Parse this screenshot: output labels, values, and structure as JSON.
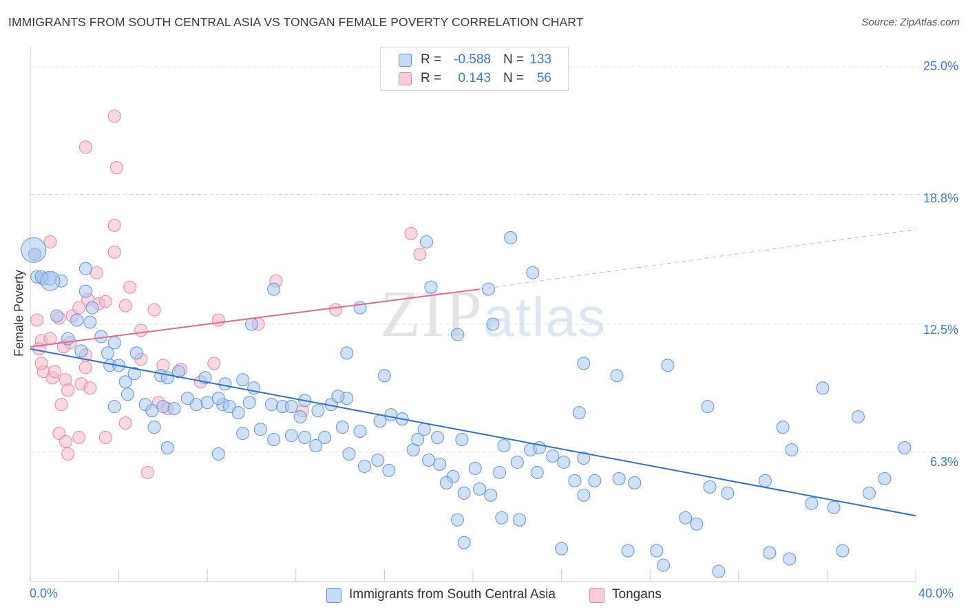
{
  "title": "IMMIGRANTS FROM SOUTH CENTRAL ASIA VS TONGAN FEMALE POVERTY CORRELATION CHART",
  "source": "Source: ZipAtlas.com",
  "watermark": {
    "zip": "ZIP",
    "atlas": "atlas"
  },
  "legend": {
    "rows": [
      {
        "r_label": "R =",
        "r_value": "-0.588",
        "n_label": "N =",
        "n_value": "133",
        "color": "#a9c8ef"
      },
      {
        "r_label": "R =",
        "r_value": "0.143",
        "n_label": "N =",
        "n_value": "56",
        "color": "#f5b8ca"
      }
    ]
  },
  "bottom_legend": [
    {
      "label": "Immigrants from South Central Asia",
      "color": "#a9c8ef"
    },
    {
      "label": "Tongans",
      "color": "#f5b8ca"
    }
  ],
  "colors": {
    "blue_fill": "#a9c8ef",
    "blue_stroke": "#5b93d8",
    "blue_line": "#2e6fd0",
    "pink_fill": "#f5b8ca",
    "pink_stroke": "#e585a2",
    "pink_line": "#e06b90",
    "tick_text": "#3a7bd5",
    "grid": "#dcdcdc"
  },
  "chart_data": {
    "type": "scatter",
    "title": "IMMIGRANTS FROM SOUTH CENTRAL ASIA VS TONGAN FEMALE POVERTY CORRELATION CHART",
    "xlabel": "",
    "ylabel": "Female Poverty",
    "xlim": [
      0,
      40
    ],
    "ylim": [
      0,
      27
    ],
    "x_tick_labels": [
      "0.0%",
      "40.0%"
    ],
    "y_ticks": [
      6.3,
      12.5,
      18.8,
      25.0
    ],
    "y_tick_labels": [
      "6.3%",
      "12.5%",
      "18.8%",
      "25.0%"
    ],
    "grid": true,
    "series": [
      {
        "name": "Immigrants from South Central Asia",
        "trend": {
          "x": [
            0,
            40
          ],
          "y": [
            11.3,
            3.2
          ],
          "dashed_from_x": null
        },
        "points": [
          [
            0.2,
            15.9
          ],
          [
            0.3,
            14.8
          ],
          [
            0.6,
            14.7
          ],
          [
            0.9,
            14.7
          ],
          [
            1.4,
            14.6
          ],
          [
            0.5,
            14.8
          ],
          [
            1.2,
            12.9
          ],
          [
            2.5,
            15.2
          ],
          [
            2.5,
            14.1
          ],
          [
            2.8,
            13.3
          ],
          [
            2.1,
            12.7
          ],
          [
            2.7,
            12.6
          ],
          [
            3.2,
            11.9
          ],
          [
            3.8,
            11.6
          ],
          [
            3.5,
            11.1
          ],
          [
            1.7,
            11.8
          ],
          [
            2.3,
            11.2
          ],
          [
            4.8,
            11.1
          ],
          [
            3.6,
            10.5
          ],
          [
            4.0,
            10.5
          ],
          [
            4.3,
            9.7
          ],
          [
            4.7,
            10.1
          ],
          [
            5.9,
            10.0
          ],
          [
            6.2,
            9.9
          ],
          [
            6.7,
            10.2
          ],
          [
            7.9,
            9.9
          ],
          [
            8.8,
            9.6
          ],
          [
            9.6,
            9.8
          ],
          [
            10.1,
            9.4
          ],
          [
            4.4,
            9.1
          ],
          [
            3.8,
            8.5
          ],
          [
            5.2,
            8.6
          ],
          [
            6.0,
            8.5
          ],
          [
            5.5,
            8.3
          ],
          [
            6.5,
            8.4
          ],
          [
            7.5,
            8.6
          ],
          [
            8.0,
            8.7
          ],
          [
            8.7,
            8.6
          ],
          [
            7.1,
            8.9
          ],
          [
            8.5,
            8.9
          ],
          [
            9.0,
            8.5
          ],
          [
            9.9,
            8.7
          ],
          [
            10.9,
            8.6
          ],
          [
            11.4,
            8.5
          ],
          [
            12.4,
            8.8
          ],
          [
            13.6,
            8.6
          ],
          [
            14.3,
            8.9
          ],
          [
            11.8,
            8.5
          ],
          [
            13.0,
            8.3
          ],
          [
            9.4,
            8.2
          ],
          [
            12.2,
            8.0
          ],
          [
            16.3,
            8.1
          ],
          [
            16.8,
            7.9
          ],
          [
            15.8,
            7.8
          ],
          [
            14.1,
            7.5
          ],
          [
            14.9,
            7.3
          ],
          [
            17.8,
            7.4
          ],
          [
            18.4,
            7.0
          ],
          [
            19.5,
            6.9
          ],
          [
            21.4,
            6.6
          ],
          [
            22.6,
            6.4
          ],
          [
            23.6,
            6.1
          ],
          [
            25.0,
            6.0
          ],
          [
            10.4,
            7.4
          ],
          [
            9.6,
            7.2
          ],
          [
            11.8,
            7.1
          ],
          [
            12.4,
            7.0
          ],
          [
            13.3,
            7.0
          ],
          [
            12.9,
            6.6
          ],
          [
            14.4,
            6.2
          ],
          [
            15.1,
            5.6
          ],
          [
            15.7,
            5.9
          ],
          [
            16.2,
            5.4
          ],
          [
            17.3,
            6.4
          ],
          [
            18.0,
            5.9
          ],
          [
            18.5,
            5.7
          ],
          [
            19.1,
            5.1
          ],
          [
            20.1,
            5.5
          ],
          [
            21.2,
            5.3
          ],
          [
            22.0,
            5.8
          ],
          [
            22.9,
            5.3
          ],
          [
            24.1,
            5.8
          ],
          [
            25.5,
            4.9
          ],
          [
            26.6,
            5.0
          ],
          [
            27.3,
            4.8
          ],
          [
            30.7,
            4.6
          ],
          [
            33.2,
            4.9
          ],
          [
            34.4,
            6.4
          ],
          [
            34.0,
            7.5
          ],
          [
            11.0,
            6.9
          ],
          [
            8.5,
            6.2
          ],
          [
            6.2,
            6.5
          ],
          [
            5.6,
            7.5
          ],
          [
            17.5,
            6.9
          ],
          [
            18.8,
            4.8
          ],
          [
            20.3,
            4.5
          ],
          [
            20.8,
            4.2
          ],
          [
            25.0,
            4.2
          ],
          [
            31.5,
            4.3
          ],
          [
            35.3,
            3.8
          ],
          [
            36.3,
            3.6
          ],
          [
            37.9,
            4.3
          ],
          [
            38.6,
            5.0
          ],
          [
            39.5,
            6.5
          ],
          [
            37.4,
            8.0
          ],
          [
            35.8,
            9.4
          ],
          [
            30.6,
            8.5
          ],
          [
            28.8,
            10.5
          ],
          [
            26.5,
            10.0
          ],
          [
            25.0,
            10.6
          ],
          [
            24.8,
            8.2
          ],
          [
            20.7,
            14.2
          ],
          [
            21.7,
            16.7
          ],
          [
            22.7,
            15.0
          ],
          [
            17.9,
            16.5
          ],
          [
            18.1,
            14.3
          ],
          [
            14.9,
            13.3
          ],
          [
            11.0,
            14.2
          ],
          [
            10.0,
            12.5
          ],
          [
            16.0,
            10.0
          ],
          [
            14.3,
            11.1
          ],
          [
            13.9,
            9.0
          ],
          [
            19.3,
            12.0
          ],
          [
            20.9,
            12.5
          ],
          [
            23.0,
            6.5
          ],
          [
            29.6,
            3.1
          ],
          [
            30.1,
            2.8
          ],
          [
            28.3,
            1.5
          ],
          [
            27.0,
            1.5
          ],
          [
            24.0,
            1.6
          ],
          [
            33.4,
            1.4
          ],
          [
            34.3,
            1.1
          ],
          [
            19.6,
            1.9
          ],
          [
            19.3,
            3.0
          ],
          [
            22.1,
            3.0
          ],
          [
            24.6,
            4.9
          ],
          [
            21.3,
            3.1
          ],
          [
            28.6,
            0.8
          ],
          [
            31.1,
            0.5
          ],
          [
            36.7,
            1.5
          ],
          [
            19.6,
            4.3
          ]
        ],
        "big_points": [
          [
            0.15,
            16.1
          ],
          [
            0.9,
            14.6
          ]
        ]
      },
      {
        "name": "Tongans",
        "trend": {
          "x": [
            0,
            20.3
          ],
          "y": [
            11.4,
            14.2
          ],
          "dashed_from_x": 20.3,
          "dashed_to": [
            40,
            17.1
          ]
        },
        "points": [
          [
            0.2,
            15.9
          ],
          [
            0.9,
            16.5
          ],
          [
            0.3,
            12.7
          ],
          [
            1.3,
            12.8
          ],
          [
            1.9,
            12.9
          ],
          [
            0.5,
            11.7
          ],
          [
            0.9,
            11.8
          ],
          [
            1.8,
            11.6
          ],
          [
            1.5,
            11.4
          ],
          [
            0.4,
            11.3
          ],
          [
            2.5,
            11.0
          ],
          [
            0.6,
            10.2
          ],
          [
            1.0,
            9.9
          ],
          [
            1.1,
            10.2
          ],
          [
            0.5,
            10.6
          ],
          [
            1.6,
            9.8
          ],
          [
            1.7,
            9.3
          ],
          [
            2.3,
            9.6
          ],
          [
            2.7,
            9.4
          ],
          [
            2.5,
            10.4
          ],
          [
            1.4,
            8.6
          ],
          [
            1.3,
            7.2
          ],
          [
            1.6,
            6.8
          ],
          [
            1.7,
            6.2
          ],
          [
            2.2,
            7.0
          ],
          [
            3.4,
            7.0
          ],
          [
            4.3,
            7.7
          ],
          [
            5.3,
            5.3
          ],
          [
            2.6,
            13.7
          ],
          [
            2.2,
            13.3
          ],
          [
            3.1,
            13.5
          ],
          [
            3.4,
            13.6
          ],
          [
            4.3,
            13.4
          ],
          [
            5.0,
            12.2
          ],
          [
            5.6,
            13.2
          ],
          [
            4.5,
            14.3
          ],
          [
            3.0,
            15.0
          ],
          [
            3.8,
            16.0
          ],
          [
            3.8,
            17.3
          ],
          [
            2.5,
            21.1
          ],
          [
            3.8,
            22.6
          ],
          [
            3.9,
            20.1
          ],
          [
            5.0,
            10.8
          ],
          [
            6.0,
            10.5
          ],
          [
            6.8,
            10.3
          ],
          [
            5.8,
            8.7
          ],
          [
            6.2,
            8.4
          ],
          [
            7.7,
            9.7
          ],
          [
            8.3,
            10.6
          ],
          [
            8.5,
            12.7
          ],
          [
            10.3,
            12.5
          ],
          [
            12.3,
            8.3
          ],
          [
            17.2,
            16.9
          ],
          [
            17.6,
            15.9
          ],
          [
            13.8,
            13.2
          ],
          [
            11.1,
            14.6
          ]
        ],
        "big_points": []
      }
    ]
  }
}
